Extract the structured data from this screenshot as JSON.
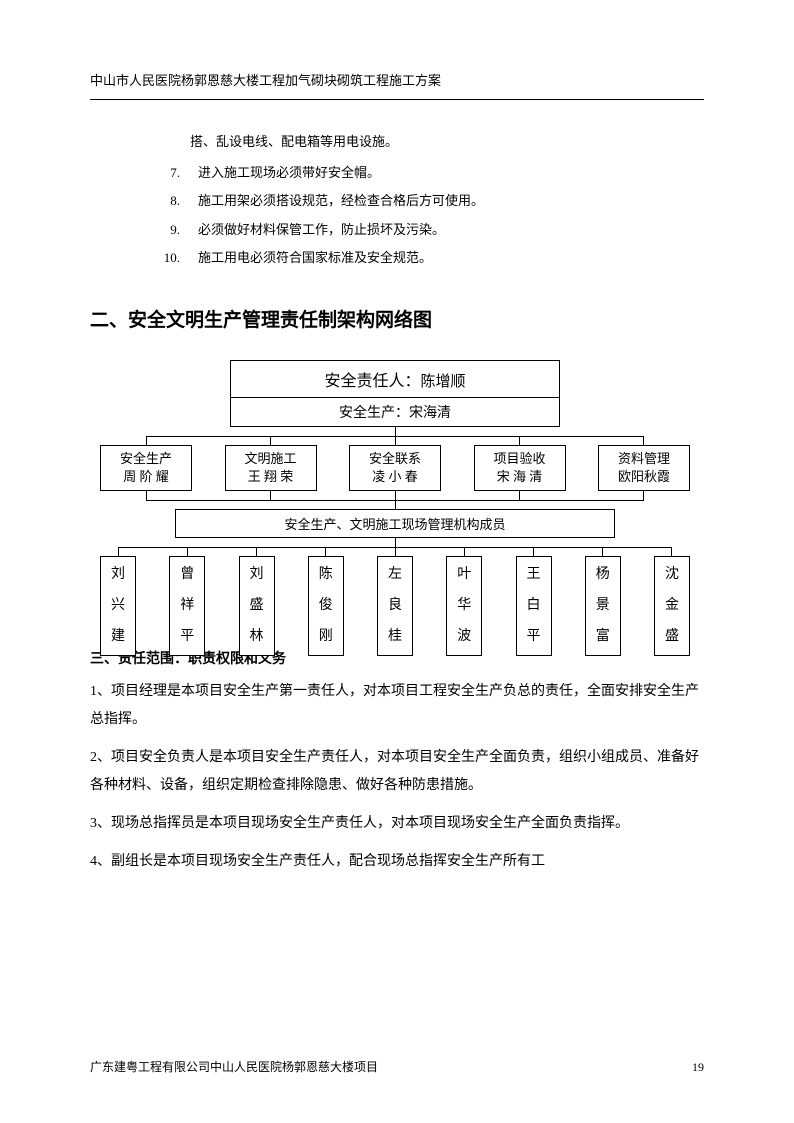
{
  "header": "中山市人民医院杨郭恩慈大楼工程加气砌块砌筑工程施工方案",
  "list": {
    "cont0": "搭、乱设电线、配电箱等用电设施。",
    "items": [
      {
        "n": "7.",
        "t": "进入施工现场必须带好安全帽。"
      },
      {
        "n": "8.",
        "t": "施工用架必须搭设规范，经检查合格后方可使用。"
      },
      {
        "n": "9.",
        "t": "必须做好材料保管工作，防止损坏及污染。"
      },
      {
        "n": "10.",
        "t": "施工用电必须符合国家标准及安全规范。"
      }
    ]
  },
  "section2": "二、安全文明生产管理责任制架构网络图",
  "org": {
    "top1_label": "安全责任人：",
    "top1_name": "陈增顺",
    "top2": "安全生产：宋海清",
    "mid": [
      {
        "l1": "安全生产",
        "l2": "周 阶 耀"
      },
      {
        "l1": "文明施工",
        "l2": "王 翔 荣"
      },
      {
        "l1": "安全联系",
        "l2": "凌 小 春"
      },
      {
        "l1": "项目验收",
        "l2": "宋 海 清"
      },
      {
        "l1": "资料管理",
        "l2": "欧阳秋霞"
      }
    ],
    "banner": "安全生产、文明施工现场管理机构成员",
    "bottom": [
      "刘兴建",
      "曾祥平",
      "刘盛林",
      "陈俊刚",
      "左良桂",
      "叶华波",
      "王白平",
      "杨景富",
      "沈金盛"
    ]
  },
  "section3": "三、责任范围：职责权限和义务",
  "paras": [
    "1、项目经理是本项目安全生产第一责任人，对本项目工程安全生产负总的责任，全面安排安全生产总指挥。",
    "2、项目安全负责人是本项目安全生产责任人，对本项目安全生产全面负责，组织小组成员、准备好各种材料、设备，组织定期检查排除隐患、做好各种防患措施。",
    "3、现场总指挥员是本项目现场安全生产责任人，对本项目现场安全生产全面负责指挥。",
    "4、副组长是本项目现场安全生产责任人，配合现场总指挥安全生产所有工"
  ],
  "footer": "广东建粤工程有限公司中山人民医院杨郭恩慈大楼项目",
  "pagenum": "19"
}
